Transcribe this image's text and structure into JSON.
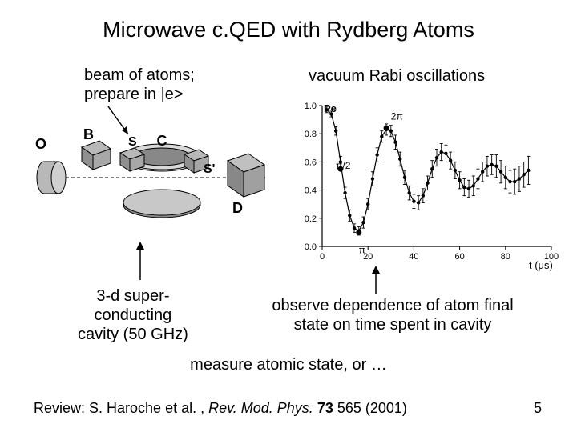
{
  "title": "Microwave c.QED with Rydberg Atoms",
  "labels": {
    "beam_l1": "beam of atoms;",
    "beam_l2": "prepare in |e>",
    "rabi": "vacuum Rabi oscillations",
    "super_l1": "3-d super-",
    "super_l2": "conducting",
    "super_l3": "cavity (50 GHz)",
    "observe_l1": "observe dependence of atom final",
    "observe_l2": "state on time spent in cavity",
    "measure": "measure atomic state, or …",
    "review_pre": "Review: S. Haroche et al. , ",
    "review_ital": "Rev. Mod. Phys. ",
    "review_bold": "73",
    "review_post": " 565 (2001)",
    "slide": "5"
  },
  "apparatus": {
    "letters": {
      "O": "O",
      "B": "B",
      "S": "S",
      "C": "C",
      "Sp": "S'",
      "D": "D"
    },
    "colors": {
      "fill": "#b8b8b8",
      "edge": "#000000",
      "dark": "#707070",
      "shadow": "#888888"
    }
  },
  "chart": {
    "type": "line-scatter",
    "xlabel": "t (μs)",
    "ylabel": "Pe",
    "xlim": [
      0,
      100
    ],
    "ylim": [
      0,
      1.0
    ],
    "xticks": [
      0,
      20,
      40,
      60,
      80,
      100
    ],
    "yticks": [
      0,
      0.2,
      0.4,
      0.6,
      0.8,
      1.0
    ],
    "annotations": {
      "pi2": "π/2",
      "pi": "π",
      "two_pi": "2π"
    },
    "data": [
      {
        "x": 2,
        "y": 0.97,
        "e": 0.02
      },
      {
        "x": 4,
        "y": 0.94,
        "e": 0.02
      },
      {
        "x": 6,
        "y": 0.82,
        "e": 0.03
      },
      {
        "x": 8,
        "y": 0.6,
        "e": 0.04
      },
      {
        "x": 10,
        "y": 0.38,
        "e": 0.04
      },
      {
        "x": 12,
        "y": 0.22,
        "e": 0.04
      },
      {
        "x": 14,
        "y": 0.13,
        "e": 0.03
      },
      {
        "x": 16,
        "y": 0.11,
        "e": 0.03
      },
      {
        "x": 18,
        "y": 0.17,
        "e": 0.04
      },
      {
        "x": 20,
        "y": 0.3,
        "e": 0.04
      },
      {
        "x": 22,
        "y": 0.48,
        "e": 0.05
      },
      {
        "x": 24,
        "y": 0.65,
        "e": 0.05
      },
      {
        "x": 26,
        "y": 0.78,
        "e": 0.04
      },
      {
        "x": 28,
        "y": 0.83,
        "e": 0.04
      },
      {
        "x": 30,
        "y": 0.82,
        "e": 0.04
      },
      {
        "x": 32,
        "y": 0.74,
        "e": 0.05
      },
      {
        "x": 34,
        "y": 0.62,
        "e": 0.05
      },
      {
        "x": 36,
        "y": 0.49,
        "e": 0.05
      },
      {
        "x": 38,
        "y": 0.38,
        "e": 0.05
      },
      {
        "x": 40,
        "y": 0.32,
        "e": 0.05
      },
      {
        "x": 42,
        "y": 0.31,
        "e": 0.05
      },
      {
        "x": 44,
        "y": 0.36,
        "e": 0.05
      },
      {
        "x": 46,
        "y": 0.45,
        "e": 0.05
      },
      {
        "x": 48,
        "y": 0.55,
        "e": 0.06
      },
      {
        "x": 50,
        "y": 0.63,
        "e": 0.06
      },
      {
        "x": 52,
        "y": 0.67,
        "e": 0.06
      },
      {
        "x": 54,
        "y": 0.66,
        "e": 0.06
      },
      {
        "x": 56,
        "y": 0.61,
        "e": 0.06
      },
      {
        "x": 58,
        "y": 0.54,
        "e": 0.06
      },
      {
        "x": 60,
        "y": 0.47,
        "e": 0.06
      },
      {
        "x": 62,
        "y": 0.42,
        "e": 0.06
      },
      {
        "x": 64,
        "y": 0.41,
        "e": 0.06
      },
      {
        "x": 66,
        "y": 0.43,
        "e": 0.07
      },
      {
        "x": 68,
        "y": 0.48,
        "e": 0.07
      },
      {
        "x": 70,
        "y": 0.53,
        "e": 0.07
      },
      {
        "x": 72,
        "y": 0.57,
        "e": 0.07
      },
      {
        "x": 74,
        "y": 0.58,
        "e": 0.07
      },
      {
        "x": 76,
        "y": 0.57,
        "e": 0.08
      },
      {
        "x": 78,
        "y": 0.53,
        "e": 0.08
      },
      {
        "x": 80,
        "y": 0.49,
        "e": 0.08
      },
      {
        "x": 82,
        "y": 0.46,
        "e": 0.08
      },
      {
        "x": 84,
        "y": 0.46,
        "e": 0.09
      },
      {
        "x": 86,
        "y": 0.48,
        "e": 0.09
      },
      {
        "x": 88,
        "y": 0.51,
        "e": 0.09
      },
      {
        "x": 90,
        "y": 0.54,
        "e": 0.1
      }
    ],
    "colors": {
      "axis": "#000000",
      "line": "#000000",
      "marker": "#000000",
      "bg": "#ffffff"
    },
    "fontsize_label": 13,
    "fontsize_tick": 11,
    "marker_r": 2.2
  },
  "arrows": {
    "stroke": "#000000",
    "width": 1.4
  }
}
